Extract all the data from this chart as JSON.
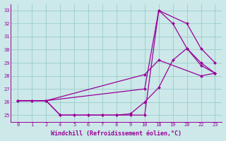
{
  "background_color": "#cce8e8",
  "grid_color": "#99cccc",
  "line_color": "#990099",
  "marker_color": "#990099",
  "xlabel": "Windchill (Refroidissement éolien,°C)",
  "ylim": [
    24.5,
    33.5
  ],
  "yticks": [
    25,
    26,
    27,
    28,
    29,
    30,
    31,
    32,
    33
  ],
  "xlabels": [
    "0",
    "1",
    "2",
    "4",
    "5",
    "6",
    "7",
    "8",
    "9",
    "10",
    "18",
    "19",
    "20",
    "22",
    "23"
  ],
  "series": [
    {
      "indices": [
        0,
        1,
        2,
        3,
        4,
        5,
        6,
        7,
        8,
        9,
        10,
        11,
        12,
        13,
        14
      ],
      "y": [
        26.1,
        26.1,
        26.1,
        25.0,
        25.0,
        25.0,
        25.0,
        25.0,
        25.0,
        25.0,
        33.0,
        32.0,
        30.1,
        29.0,
        28.2
      ]
    },
    {
      "indices": [
        0,
        1,
        2,
        3,
        4,
        5,
        6,
        7,
        8,
        9,
        10,
        11,
        12,
        13,
        14
      ],
      "y": [
        26.1,
        26.1,
        26.1,
        25.0,
        25.0,
        25.0,
        25.0,
        25.0,
        25.1,
        26.0,
        27.1,
        29.2,
        30.1,
        28.8,
        28.2
      ]
    },
    {
      "indices": [
        0,
        2,
        9,
        10,
        12,
        13,
        14
      ],
      "y": [
        26.1,
        26.1,
        27.0,
        33.0,
        32.0,
        30.1,
        29.0
      ]
    },
    {
      "indices": [
        0,
        2,
        9,
        10,
        13,
        14
      ],
      "y": [
        26.1,
        26.1,
        28.1,
        29.2,
        28.0,
        28.2
      ]
    }
  ]
}
